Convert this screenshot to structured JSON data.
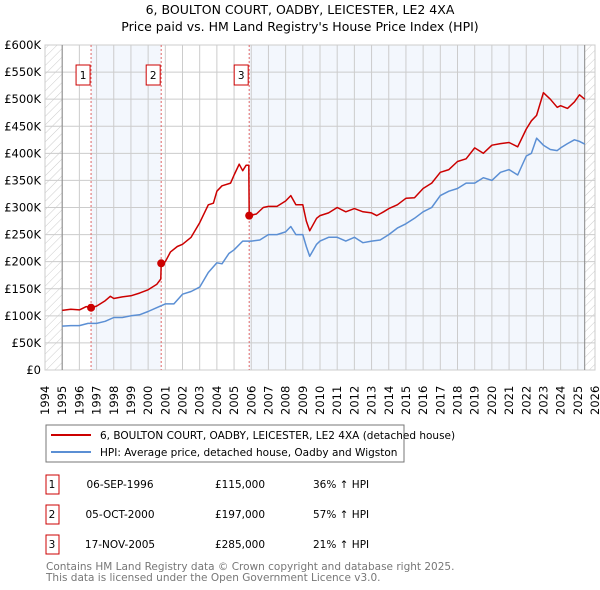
{
  "chart_data": {
    "type": "line",
    "title": "6, BOULTON COURT, OADBY, LEICESTER, LE2 4XA",
    "subtitle": "Price paid vs. HM Land Registry's House Price Index (HPI)",
    "xlim": [
      1994,
      2026
    ],
    "ylim": [
      0,
      600000
    ],
    "x_ticks": [
      1994,
      1995,
      1996,
      1997,
      1998,
      1999,
      2000,
      2001,
      2002,
      2003,
      2004,
      2005,
      2006,
      2007,
      2008,
      2009,
      2010,
      2011,
      2012,
      2013,
      2014,
      2015,
      2016,
      2017,
      2018,
      2019,
      2020,
      2021,
      2022,
      2023,
      2024,
      2025,
      2026
    ],
    "y_ticks": [
      {
        "v": 0,
        "label": "£0"
      },
      {
        "v": 50000,
        "label": "£50K"
      },
      {
        "v": 100000,
        "label": "£100K"
      },
      {
        "v": 150000,
        "label": "£150K"
      },
      {
        "v": 200000,
        "label": "£200K"
      },
      {
        "v": 250000,
        "label": "£250K"
      },
      {
        "v": 300000,
        "label": "£300K"
      },
      {
        "v": 350000,
        "label": "£350K"
      },
      {
        "v": 400000,
        "label": "£400K"
      },
      {
        "v": 450000,
        "label": "£450K"
      },
      {
        "v": 500000,
        "label": "£500K"
      },
      {
        "v": 550000,
        "label": "£550K"
      },
      {
        "v": 600000,
        "label": "£600K"
      }
    ],
    "grid": true,
    "data_range": [
      1995,
      2025.4
    ],
    "series": [
      {
        "name": "6, BOULTON COURT, OADBY, LEICESTER, LE2 4XA (detached house)",
        "color": "#cc0000",
        "x": [
          1995,
          1995.5,
          1996,
          1996.4,
          1996.68,
          1997,
          1997.5,
          1997.8,
          1998,
          1998.5,
          1999,
          1999.5,
          2000,
          2000.5,
          2000.74,
          2000.76,
          2001,
          2001.3,
          2001.7,
          2002,
          2002.5,
          2003,
          2003.5,
          2003.8,
          2004,
          2004.3,
          2004.8,
          2005,
          2005.3,
          2005.5,
          2005.7,
          2005.86,
          2005.88,
          2006.3,
          2006.7,
          2007,
          2007.5,
          2008,
          2008.3,
          2008.6,
          2009,
          2009.2,
          2009.4,
          2009.8,
          2010,
          2010.5,
          2011,
          2011.5,
          2012,
          2012.5,
          2013,
          2013.3,
          2013.7,
          2014,
          2014.5,
          2015,
          2015.5,
          2016,
          2016.5,
          2017,
          2017.5,
          2018,
          2018.5,
          2019,
          2019.5,
          2020,
          2020.5,
          2021,
          2021.5,
          2022,
          2022.3,
          2022.6,
          2023,
          2023.4,
          2023.8,
          2024,
          2024.4,
          2024.8,
          2025.1,
          2025.4
        ],
        "y": [
          110000,
          112000,
          111000,
          117000,
          115000,
          118000,
          128000,
          136000,
          132000,
          135000,
          137000,
          142000,
          148000,
          158000,
          168000,
          197000,
          200000,
          218000,
          228000,
          232000,
          245000,
          272000,
          305000,
          308000,
          330000,
          340000,
          345000,
          360000,
          380000,
          368000,
          378000,
          378000,
          285000,
          288000,
          300000,
          302000,
          302000,
          312000,
          322000,
          305000,
          305000,
          275000,
          257000,
          280000,
          285000,
          290000,
          300000,
          292000,
          298000,
          292000,
          290000,
          285000,
          292000,
          298000,
          305000,
          317000,
          318000,
          335000,
          345000,
          365000,
          370000,
          385000,
          390000,
          410000,
          400000,
          415000,
          418000,
          420000,
          412000,
          445000,
          460000,
          470000,
          512000,
          500000,
          485000,
          488000,
          483000,
          495000,
          508000,
          500000
        ]
      },
      {
        "name": "HPI: Average price, detached house, Oadby and Wigston",
        "color": "#5b8fd4",
        "x": [
          1995,
          1995.5,
          1996,
          1996.5,
          1997,
          1997.5,
          1998,
          1998.5,
          1999,
          1999.5,
          2000,
          2000.5,
          2001,
          2001.5,
          2002,
          2002.5,
          2003,
          2003.5,
          2004,
          2004.3,
          2004.7,
          2005,
          2005.5,
          2006,
          2006.5,
          2007,
          2007.5,
          2008,
          2008.3,
          2008.6,
          2009,
          2009.2,
          2009.4,
          2009.8,
          2010,
          2010.5,
          2011,
          2011.5,
          2012,
          2012.5,
          2013,
          2013.5,
          2014,
          2014.5,
          2015,
          2015.5,
          2016,
          2016.5,
          2017,
          2017.5,
          2018,
          2018.5,
          2019,
          2019.5,
          2020,
          2020.5,
          2021,
          2021.5,
          2022,
          2022.3,
          2022.6,
          2023,
          2023.4,
          2023.8,
          2024,
          2024.4,
          2024.8,
          2025.1,
          2025.4
        ],
        "y": [
          81000,
          82000,
          82000,
          86000,
          86000,
          90000,
          97000,
          97000,
          100000,
          102000,
          108000,
          115000,
          122000,
          122000,
          140000,
          145000,
          153000,
          180000,
          198000,
          196000,
          215000,
          222000,
          238000,
          238000,
          240000,
          250000,
          250000,
          255000,
          265000,
          250000,
          250000,
          228000,
          210000,
          232000,
          238000,
          245000,
          245000,
          238000,
          245000,
          235000,
          238000,
          240000,
          250000,
          262000,
          270000,
          280000,
          292000,
          300000,
          322000,
          330000,
          335000,
          345000,
          345000,
          355000,
          350000,
          365000,
          370000,
          360000,
          395000,
          400000,
          428000,
          415000,
          407000,
          405000,
          410000,
          418000,
          425000,
          422000,
          417000
        ]
      }
    ],
    "sales": [
      {
        "n": "1",
        "x": 1996.68,
        "y": 115000,
        "date": "06-SEP-1996",
        "price": "£115,000",
        "hpi": "36% ↑ HPI"
      },
      {
        "n": "2",
        "x": 2000.76,
        "y": 197000,
        "date": "05-OCT-2000",
        "price": "£197,000",
        "hpi": "57% ↑ HPI"
      },
      {
        "n": "3",
        "x": 2005.88,
        "y": 285000,
        "date": "17-NOV-2005",
        "price": "£285,000",
        "hpi": "21% ↑ HPI"
      }
    ],
    "legend_placement": "below"
  },
  "footer": {
    "line1": "Contains HM Land Registry data © Crown copyright and database right 2025.",
    "line2": "This data is licensed under the Open Government Licence v3.0."
  }
}
